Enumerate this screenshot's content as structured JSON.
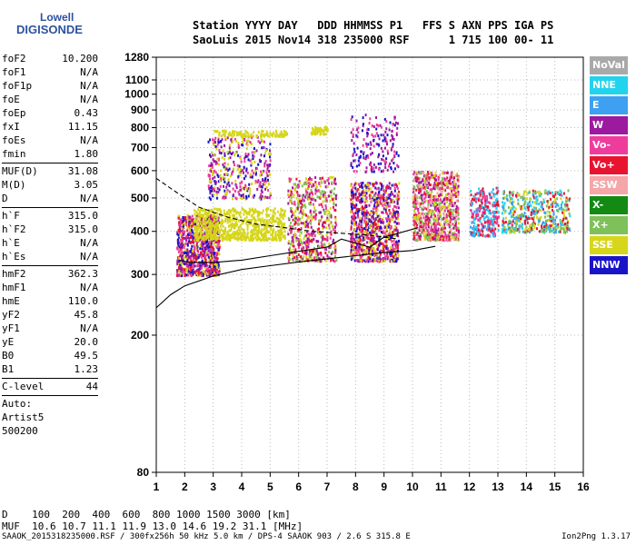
{
  "logo": {
    "line1": "Lowell",
    "line2": "DIGISONDE"
  },
  "header": {
    "row1": "Station YYYY DAY   DDD HHMMSS P1   FFS S AXN PPS IGA PS",
    "row2": "SaoLuis 2015 Nov14 318 235000 RSF      1 715 100 00- 11"
  },
  "params": {
    "group1": [
      {
        "k": "foF2",
        "v": "10.200"
      },
      {
        "k": "foF1",
        "v": "N/A"
      },
      {
        "k": "foF1p",
        "v": "N/A"
      },
      {
        "k": "foE",
        "v": "N/A"
      },
      {
        "k": "foEp",
        "v": "0.43"
      },
      {
        "k": "fxI",
        "v": "11.15"
      },
      {
        "k": "foEs",
        "v": "N/A"
      },
      {
        "k": "fmin",
        "v": "1.80"
      }
    ],
    "group2": [
      {
        "k": "MUF(D)",
        "v": "31.08"
      },
      {
        "k": "M(D)",
        "v": "3.05"
      },
      {
        "k": "D",
        "v": "N/A"
      }
    ],
    "group3": [
      {
        "k": "h`F",
        "v": "315.0"
      },
      {
        "k": "h`F2",
        "v": "315.0"
      },
      {
        "k": "h`E",
        "v": "N/A"
      },
      {
        "k": "h`Es",
        "v": "N/A"
      }
    ],
    "group4": [
      {
        "k": "hmF2",
        "v": "362.3"
      },
      {
        "k": "hmF1",
        "v": "N/A"
      },
      {
        "k": "hmE",
        "v": "110.0"
      },
      {
        "k": "yF2",
        "v": "45.8"
      },
      {
        "k": "yF1",
        "v": "N/A"
      },
      {
        "k": "yE",
        "v": "20.0"
      },
      {
        "k": "B0",
        "v": "49.5"
      },
      {
        "k": "B1",
        "v": "1.23"
      }
    ],
    "group5": [
      {
        "k": "C-level",
        "v": "44"
      }
    ],
    "auto": [
      "Auto:",
      "Artist5",
      "500200"
    ]
  },
  "legend": [
    {
      "label": "NoVal",
      "color": "#a9a9a9"
    },
    {
      "label": "NNE",
      "color": "#22d3ee"
    },
    {
      "label": "E",
      "color": "#3ea0f0"
    },
    {
      "label": "W",
      "color": "#9b1aa0"
    },
    {
      "label": "Vo-",
      "color": "#ee3c9c"
    },
    {
      "label": "Vo+",
      "color": "#e8142f"
    },
    {
      "label": "SSW",
      "color": "#f4a6a8"
    },
    {
      "label": "X-",
      "color": "#138a13"
    },
    {
      "label": "X+",
      "color": "#7fc05a"
    },
    {
      "label": "SSE",
      "color": "#d6d61a"
    },
    {
      "label": "NNW",
      "color": "#1a14c8"
    }
  ],
  "muf": {
    "row1": "D    100  200  400  600  800 1000 1500 3000 [km]",
    "row2": "MUF  10.6 10.7 11.1 11.9 13.0 14.6 19.2 31.1 [MHz]"
  },
  "footer": "SAAOK_2015318235000.RSF / 300fx256h 50 kHz 5.0 km / DPS-4 SAAOK 903 / 2.6 S 315.8 E",
  "version": "Ion2Png 1.3.17",
  "chart_data": {
    "type": "scatter",
    "title": "",
    "xlabel": "",
    "ylabel": "",
    "xlim": [
      1,
      16
    ],
    "ylim": [
      80,
      1280
    ],
    "y_scale": "log",
    "x_ticks": [
      1,
      2,
      3,
      4,
      5,
      6,
      7,
      8,
      9,
      10,
      11,
      12,
      13,
      14,
      15,
      16
    ],
    "y_ticks": [
      80,
      200,
      300,
      400,
      500,
      600,
      700,
      800,
      900,
      1000,
      1100,
      1280
    ],
    "grid": true,
    "clusters": [
      {
        "x": [
          1.7,
          3.2
        ],
        "y": [
          300,
          450
        ],
        "n": 900,
        "series": [
          "Vo+",
          "Vo-",
          "W",
          "SSE",
          "NNW"
        ]
      },
      {
        "x": [
          2.3,
          5.5
        ],
        "y": [
          380,
          470
        ],
        "n": 700,
        "series": [
          "SSE"
        ]
      },
      {
        "x": [
          2.8,
          5.0
        ],
        "y": [
          500,
          760
        ],
        "n": 400,
        "series": [
          "W",
          "Vo-",
          "NNW",
          "SSE"
        ]
      },
      {
        "x": [
          3.0,
          5.6
        ],
        "y": [
          760,
          790
        ],
        "n": 120,
        "series": [
          "SSE"
        ]
      },
      {
        "x": [
          6.4,
          7.0
        ],
        "y": [
          770,
          810
        ],
        "n": 60,
        "series": [
          "SSE"
        ]
      },
      {
        "x": [
          5.6,
          7.3
        ],
        "y": [
          330,
          580
        ],
        "n": 600,
        "series": [
          "Vo+",
          "Vo-",
          "W",
          "SSE",
          "X+"
        ]
      },
      {
        "x": [
          7.8,
          9.5
        ],
        "y": [
          330,
          560
        ],
        "n": 900,
        "series": [
          "Vo+",
          "Vo-",
          "W",
          "NNW",
          "SSE"
        ]
      },
      {
        "x": [
          7.8,
          9.5
        ],
        "y": [
          600,
          880
        ],
        "n": 180,
        "series": [
          "W",
          "NNW",
          "Vo-"
        ]
      },
      {
        "x": [
          10.0,
          11.6
        ],
        "y": [
          380,
          600
        ],
        "n": 900,
        "series": [
          "Vo+",
          "Vo-",
          "SSE",
          "X+",
          "W",
          "SSW"
        ]
      },
      {
        "x": [
          12.0,
          13.0
        ],
        "y": [
          390,
          540
        ],
        "n": 300,
        "series": [
          "Vo+",
          "Vo-",
          "NNE",
          "E"
        ]
      },
      {
        "x": [
          13.1,
          15.5
        ],
        "y": [
          400,
          530
        ],
        "n": 500,
        "series": [
          "Vo+",
          "NNE",
          "E",
          "SSE",
          "X+"
        ]
      }
    ],
    "curves": [
      {
        "name": "profile_upper_dashed",
        "style": "dashed",
        "x": [
          1.0,
          1.7,
          2.5,
          3.5,
          4.5,
          5.5,
          6.5,
          7.5,
          8.5,
          9.5
        ],
        "y": [
          570,
          520,
          470,
          440,
          420,
          410,
          400,
          395,
          390,
          380
        ]
      },
      {
        "name": "profile_lower",
        "style": "solid",
        "x": [
          1.0,
          1.5,
          2.0,
          3.0,
          4.0,
          5.0,
          6.0,
          7.0,
          8.0,
          9.0,
          10.0,
          10.8
        ],
        "y": [
          240,
          262,
          278,
          297,
          310,
          318,
          326,
          333,
          340,
          347,
          352,
          362
        ]
      },
      {
        "name": "trace",
        "style": "solid",
        "x": [
          1.8,
          2.2,
          3.0,
          4.0,
          5.0,
          6.0,
          7.0,
          7.5,
          8.0,
          8.5,
          9.0,
          9.5,
          10.2
        ],
        "y": [
          330,
          325,
          325,
          330,
          340,
          350,
          360,
          380,
          370,
          360,
          385,
          395,
          410
        ]
      }
    ]
  }
}
